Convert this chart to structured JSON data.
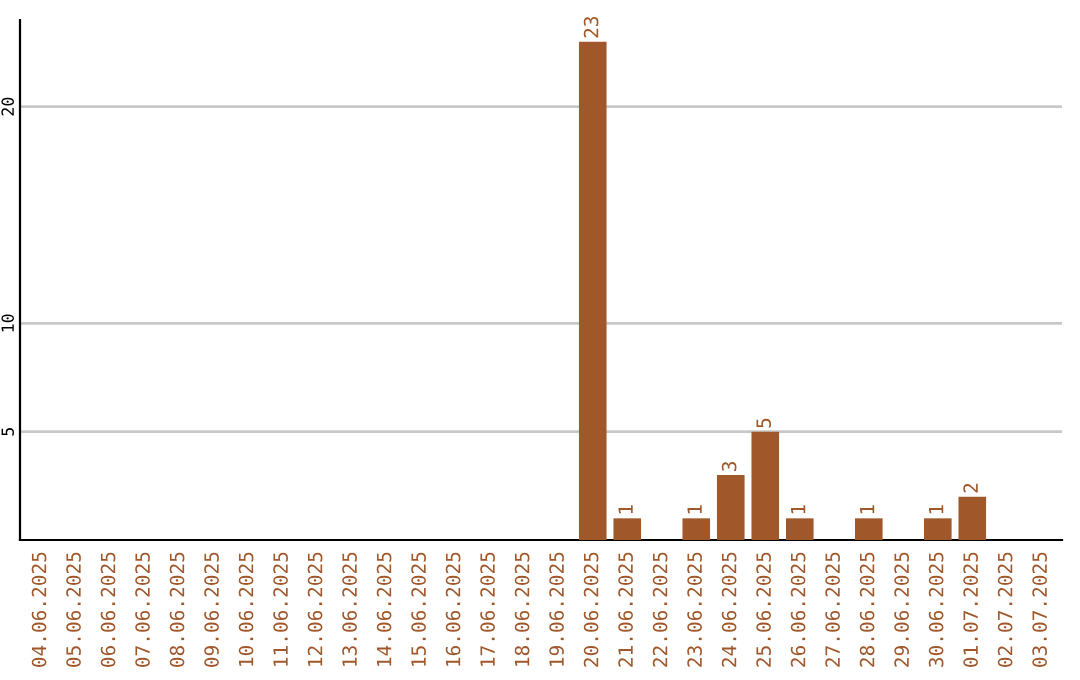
{
  "chart_data": {
    "type": "bar",
    "categories": [
      "04.06.2025",
      "05.06.2025",
      "06.06.2025",
      "07.06.2025",
      "08.06.2025",
      "09.06.2025",
      "10.06.2025",
      "11.06.2025",
      "12.06.2025",
      "13.06.2025",
      "14.06.2025",
      "15.06.2025",
      "16.06.2025",
      "17.06.2025",
      "18.06.2025",
      "19.06.2025",
      "20.06.2025",
      "21.06.2025",
      "22.06.2025",
      "23.06.2025",
      "24.06.2025",
      "25.06.2025",
      "26.06.2025",
      "27.06.2025",
      "28.06.2025",
      "29.06.2025",
      "30.06.2025",
      "01.07.2025",
      "02.07.2025",
      "03.07.2025"
    ],
    "values": [
      0,
      0,
      0,
      0,
      0,
      0,
      0,
      0,
      0,
      0,
      0,
      0,
      0,
      0,
      0,
      0,
      23,
      1,
      0,
      1,
      3,
      5,
      1,
      0,
      1,
      0,
      1,
      2,
      0,
      0
    ],
    "value_labels": [
      null,
      null,
      null,
      null,
      null,
      null,
      null,
      null,
      null,
      null,
      null,
      null,
      null,
      null,
      null,
      null,
      "23",
      "1",
      null,
      "1",
      "3",
      "5",
      "1",
      null,
      "1",
      null,
      "1",
      "2",
      null,
      null
    ],
    "color": "#a0572a",
    "ylim": [
      0,
      24
    ],
    "yticks": [
      5,
      10,
      20
    ],
    "grid": "y",
    "legend": false
  }
}
